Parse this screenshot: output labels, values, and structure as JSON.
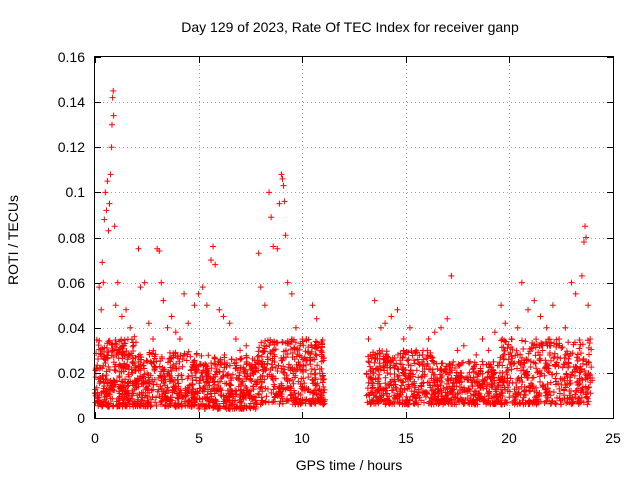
{
  "chart_data": {
    "type": "scatter",
    "title": "Day 129 of 2023, Rate Of TEC Index for receiver ganp",
    "xlabel": "GPS time / hours",
    "ylabel": "ROTI / TECUs",
    "xlim": [
      0,
      25
    ],
    "ylim": [
      0,
      0.16
    ],
    "xticks": [
      0,
      5,
      10,
      15,
      20,
      25
    ],
    "xtick_labels": [
      "0",
      "5",
      "10",
      "15",
      "20",
      "25"
    ],
    "yticks": [
      0,
      0.02,
      0.04,
      0.06,
      0.08,
      0.1,
      0.12,
      0.14,
      0.16
    ],
    "ytick_labels": [
      "0",
      "0.02",
      "0.04",
      "0.06",
      "0.08",
      "0.1",
      "0.12",
      "0.14",
      "0.16"
    ],
    "grid": true,
    "marker": "+",
    "color": "#ff0000",
    "data_gap_hours": [
      11.1,
      13.1
    ],
    "series": [
      {
        "name": "ROTI",
        "points": [
          [
            0.1,
            0.022
          ],
          [
            0.2,
            0.058
          ],
          [
            0.3,
            0.048
          ],
          [
            0.35,
            0.069
          ],
          [
            0.4,
            0.06
          ],
          [
            0.45,
            0.088
          ],
          [
            0.5,
            0.1
          ],
          [
            0.55,
            0.092
          ],
          [
            0.6,
            0.105
          ],
          [
            0.65,
            0.083
          ],
          [
            0.7,
            0.095
          ],
          [
            0.75,
            0.108
          ],
          [
            0.8,
            0.12
          ],
          [
            0.82,
            0.13
          ],
          [
            0.85,
            0.142
          ],
          [
            0.88,
            0.145
          ],
          [
            0.9,
            0.134
          ],
          [
            0.95,
            0.085
          ],
          [
            1.0,
            0.05
          ],
          [
            1.1,
            0.06
          ],
          [
            1.3,
            0.045
          ],
          [
            1.5,
            0.048
          ],
          [
            1.7,
            0.04
          ],
          [
            1.9,
            0.036
          ],
          [
            2.1,
            0.075
          ],
          [
            2.2,
            0.058
          ],
          [
            2.4,
            0.06
          ],
          [
            2.6,
            0.042
          ],
          [
            2.8,
            0.035
          ],
          [
            3.0,
            0.075
          ],
          [
            3.1,
            0.074
          ],
          [
            3.2,
            0.06
          ],
          [
            3.3,
            0.052
          ],
          [
            3.5,
            0.04
          ],
          [
            3.7,
            0.045
          ],
          [
            3.9,
            0.038
          ],
          [
            4.1,
            0.035
          ],
          [
            4.3,
            0.055
          ],
          [
            4.5,
            0.042
          ],
          [
            4.8,
            0.05
          ],
          [
            5.0,
            0.055
          ],
          [
            5.2,
            0.058
          ],
          [
            5.4,
            0.05
          ],
          [
            5.6,
            0.07
          ],
          [
            5.7,
            0.076
          ],
          [
            5.8,
            0.068
          ],
          [
            6.0,
            0.048
          ],
          [
            6.2,
            0.045
          ],
          [
            6.5,
            0.042
          ],
          [
            6.8,
            0.035
          ],
          [
            7.0,
            0.03
          ],
          [
            7.3,
            0.032
          ],
          [
            7.6,
            0.02
          ],
          [
            7.9,
            0.073
          ],
          [
            8.0,
            0.058
          ],
          [
            8.2,
            0.05
          ],
          [
            8.4,
            0.1
          ],
          [
            8.5,
            0.089
          ],
          [
            8.6,
            0.076
          ],
          [
            8.8,
            0.075
          ],
          [
            8.9,
            0.095
          ],
          [
            9.0,
            0.108
          ],
          [
            9.05,
            0.106
          ],
          [
            9.1,
            0.103
          ],
          [
            9.15,
            0.096
          ],
          [
            9.2,
            0.081
          ],
          [
            9.3,
            0.06
          ],
          [
            9.5,
            0.055
          ],
          [
            9.7,
            0.04
          ],
          [
            9.9,
            0.032
          ],
          [
            10.2,
            0.035
          ],
          [
            10.5,
            0.05
          ],
          [
            10.7,
            0.044
          ],
          [
            10.9,
            0.03
          ],
          [
            13.2,
            0.035
          ],
          [
            13.5,
            0.052
          ],
          [
            13.8,
            0.04
          ],
          [
            14.0,
            0.042
          ],
          [
            14.3,
            0.045
          ],
          [
            14.6,
            0.048
          ],
          [
            14.9,
            0.035
          ],
          [
            15.2,
            0.04
          ],
          [
            15.5,
            0.03
          ],
          [
            15.8,
            0.028
          ],
          [
            16.1,
            0.035
          ],
          [
            16.4,
            0.038
          ],
          [
            16.7,
            0.04
          ],
          [
            17.0,
            0.044
          ],
          [
            17.2,
            0.063
          ],
          [
            17.5,
            0.03
          ],
          [
            17.8,
            0.032
          ],
          [
            18.1,
            0.025
          ],
          [
            18.4,
            0.028
          ],
          [
            18.7,
            0.035
          ],
          [
            19.0,
            0.03
          ],
          [
            19.3,
            0.038
          ],
          [
            19.6,
            0.05
          ],
          [
            19.8,
            0.042
          ],
          [
            20.1,
            0.035
          ],
          [
            20.4,
            0.04
          ],
          [
            20.6,
            0.06
          ],
          [
            20.9,
            0.048
          ],
          [
            21.2,
            0.052
          ],
          [
            21.5,
            0.045
          ],
          [
            21.8,
            0.04
          ],
          [
            22.1,
            0.05
          ],
          [
            22.4,
            0.035
          ],
          [
            22.7,
            0.04
          ],
          [
            23.0,
            0.06
          ],
          [
            23.2,
            0.055
          ],
          [
            23.5,
            0.063
          ],
          [
            23.6,
            0.078
          ],
          [
            23.65,
            0.085
          ],
          [
            23.7,
            0.08
          ],
          [
            23.8,
            0.05
          ],
          [
            23.9,
            0.035
          ]
        ],
        "bands": [
          {
            "x": [
              0.0,
              2.0
            ],
            "low": 0.005,
            "high": 0.035,
            "count": 320
          },
          {
            "x": [
              2.0,
              5.0
            ],
            "low": 0.005,
            "high": 0.03,
            "count": 360
          },
          {
            "x": [
              5.0,
              7.8
            ],
            "low": 0.004,
            "high": 0.028,
            "count": 340
          },
          {
            "x": [
              7.8,
              11.1
            ],
            "low": 0.006,
            "high": 0.035,
            "count": 380
          },
          {
            "x": [
              13.1,
              16.5
            ],
            "low": 0.006,
            "high": 0.03,
            "count": 380
          },
          {
            "x": [
              16.5,
              19.5
            ],
            "low": 0.006,
            "high": 0.025,
            "count": 340
          },
          {
            "x": [
              19.5,
              24.0
            ],
            "low": 0.006,
            "high": 0.035,
            "count": 460
          }
        ]
      }
    ]
  }
}
